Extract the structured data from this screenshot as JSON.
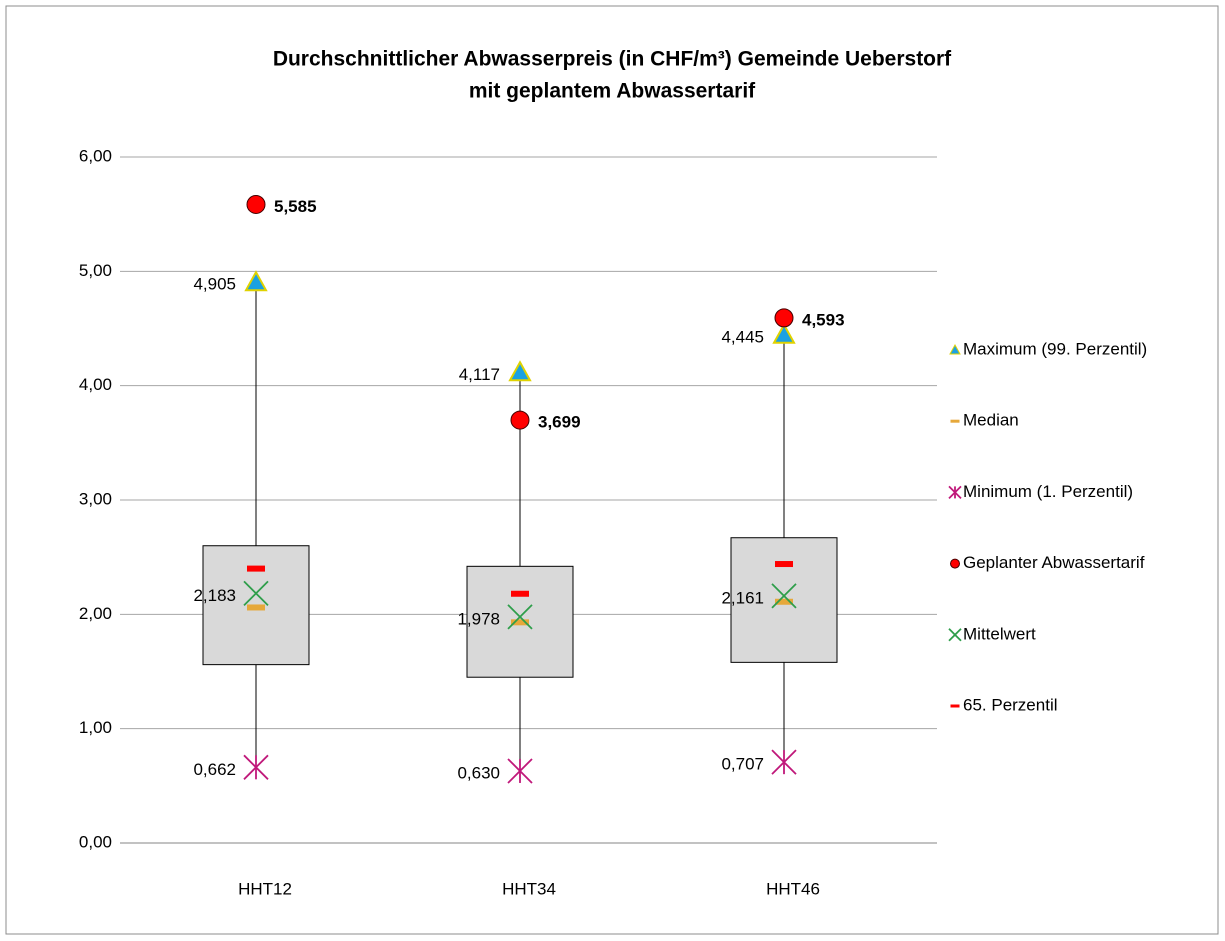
{
  "chart_data": {
    "type": "box",
    "title": [
      "Durchschnittlicher Abwasserpreis (in CHF/m³) Gemeinde Ueberstorf",
      "mit geplantem Abwassertarif"
    ],
    "categories": [
      "HHT12",
      "HHT34",
      "HHT46"
    ],
    "ylim": [
      0,
      6
    ],
    "yticks": [
      {
        "value": 0,
        "label": "0,00"
      },
      {
        "value": 1,
        "label": "1,00"
      },
      {
        "value": 2,
        "label": "2,00"
      },
      {
        "value": 3,
        "label": "3,00"
      },
      {
        "value": 4,
        "label": "4,00"
      },
      {
        "value": 5,
        "label": "5,00"
      },
      {
        "value": 6,
        "label": "6,00"
      }
    ],
    "grid": true,
    "legend": "right",
    "box_color": "#d9d9d9",
    "q1": [
      1.56,
      1.45,
      1.58
    ],
    "q3": [
      2.6,
      2.42,
      2.67
    ],
    "series": [
      {
        "name": "Maximum (99. Perzentil)",
        "marker": "triangle",
        "color": "#1ba1e2",
        "values": [
          4.905,
          4.117,
          4.445
        ],
        "value_labels": [
          "4,905",
          "4,117",
          "4,445"
        ]
      },
      {
        "name": "Median",
        "marker": "dash",
        "color": "#e6a83a",
        "values": [
          2.06,
          1.93,
          2.11
        ]
      },
      {
        "name": "Minimum (1. Perzentil)",
        "marker": "star",
        "color": "#c0187a",
        "values": [
          0.662,
          0.63,
          0.707
        ],
        "value_labels": [
          "0,662",
          "0,630",
          "0,707"
        ]
      },
      {
        "name": "Geplanter Abwassertarif",
        "marker": "circle",
        "color": "#ff0000",
        "values": [
          5.585,
          3.699,
          4.593
        ],
        "value_labels": [
          "5,585",
          "3,699",
          "4,593"
        ],
        "label_bold": true
      },
      {
        "name": "Mittelwert",
        "marker": "x",
        "color": "#2e9e4a",
        "values": [
          2.183,
          1.978,
          2.161
        ],
        "value_labels": [
          "2,183",
          "1,978",
          "2,161"
        ]
      },
      {
        "name": "65. Perzentil",
        "marker": "dash",
        "color": "#ff0000",
        "values": [
          2.4,
          2.18,
          2.44
        ]
      }
    ]
  }
}
